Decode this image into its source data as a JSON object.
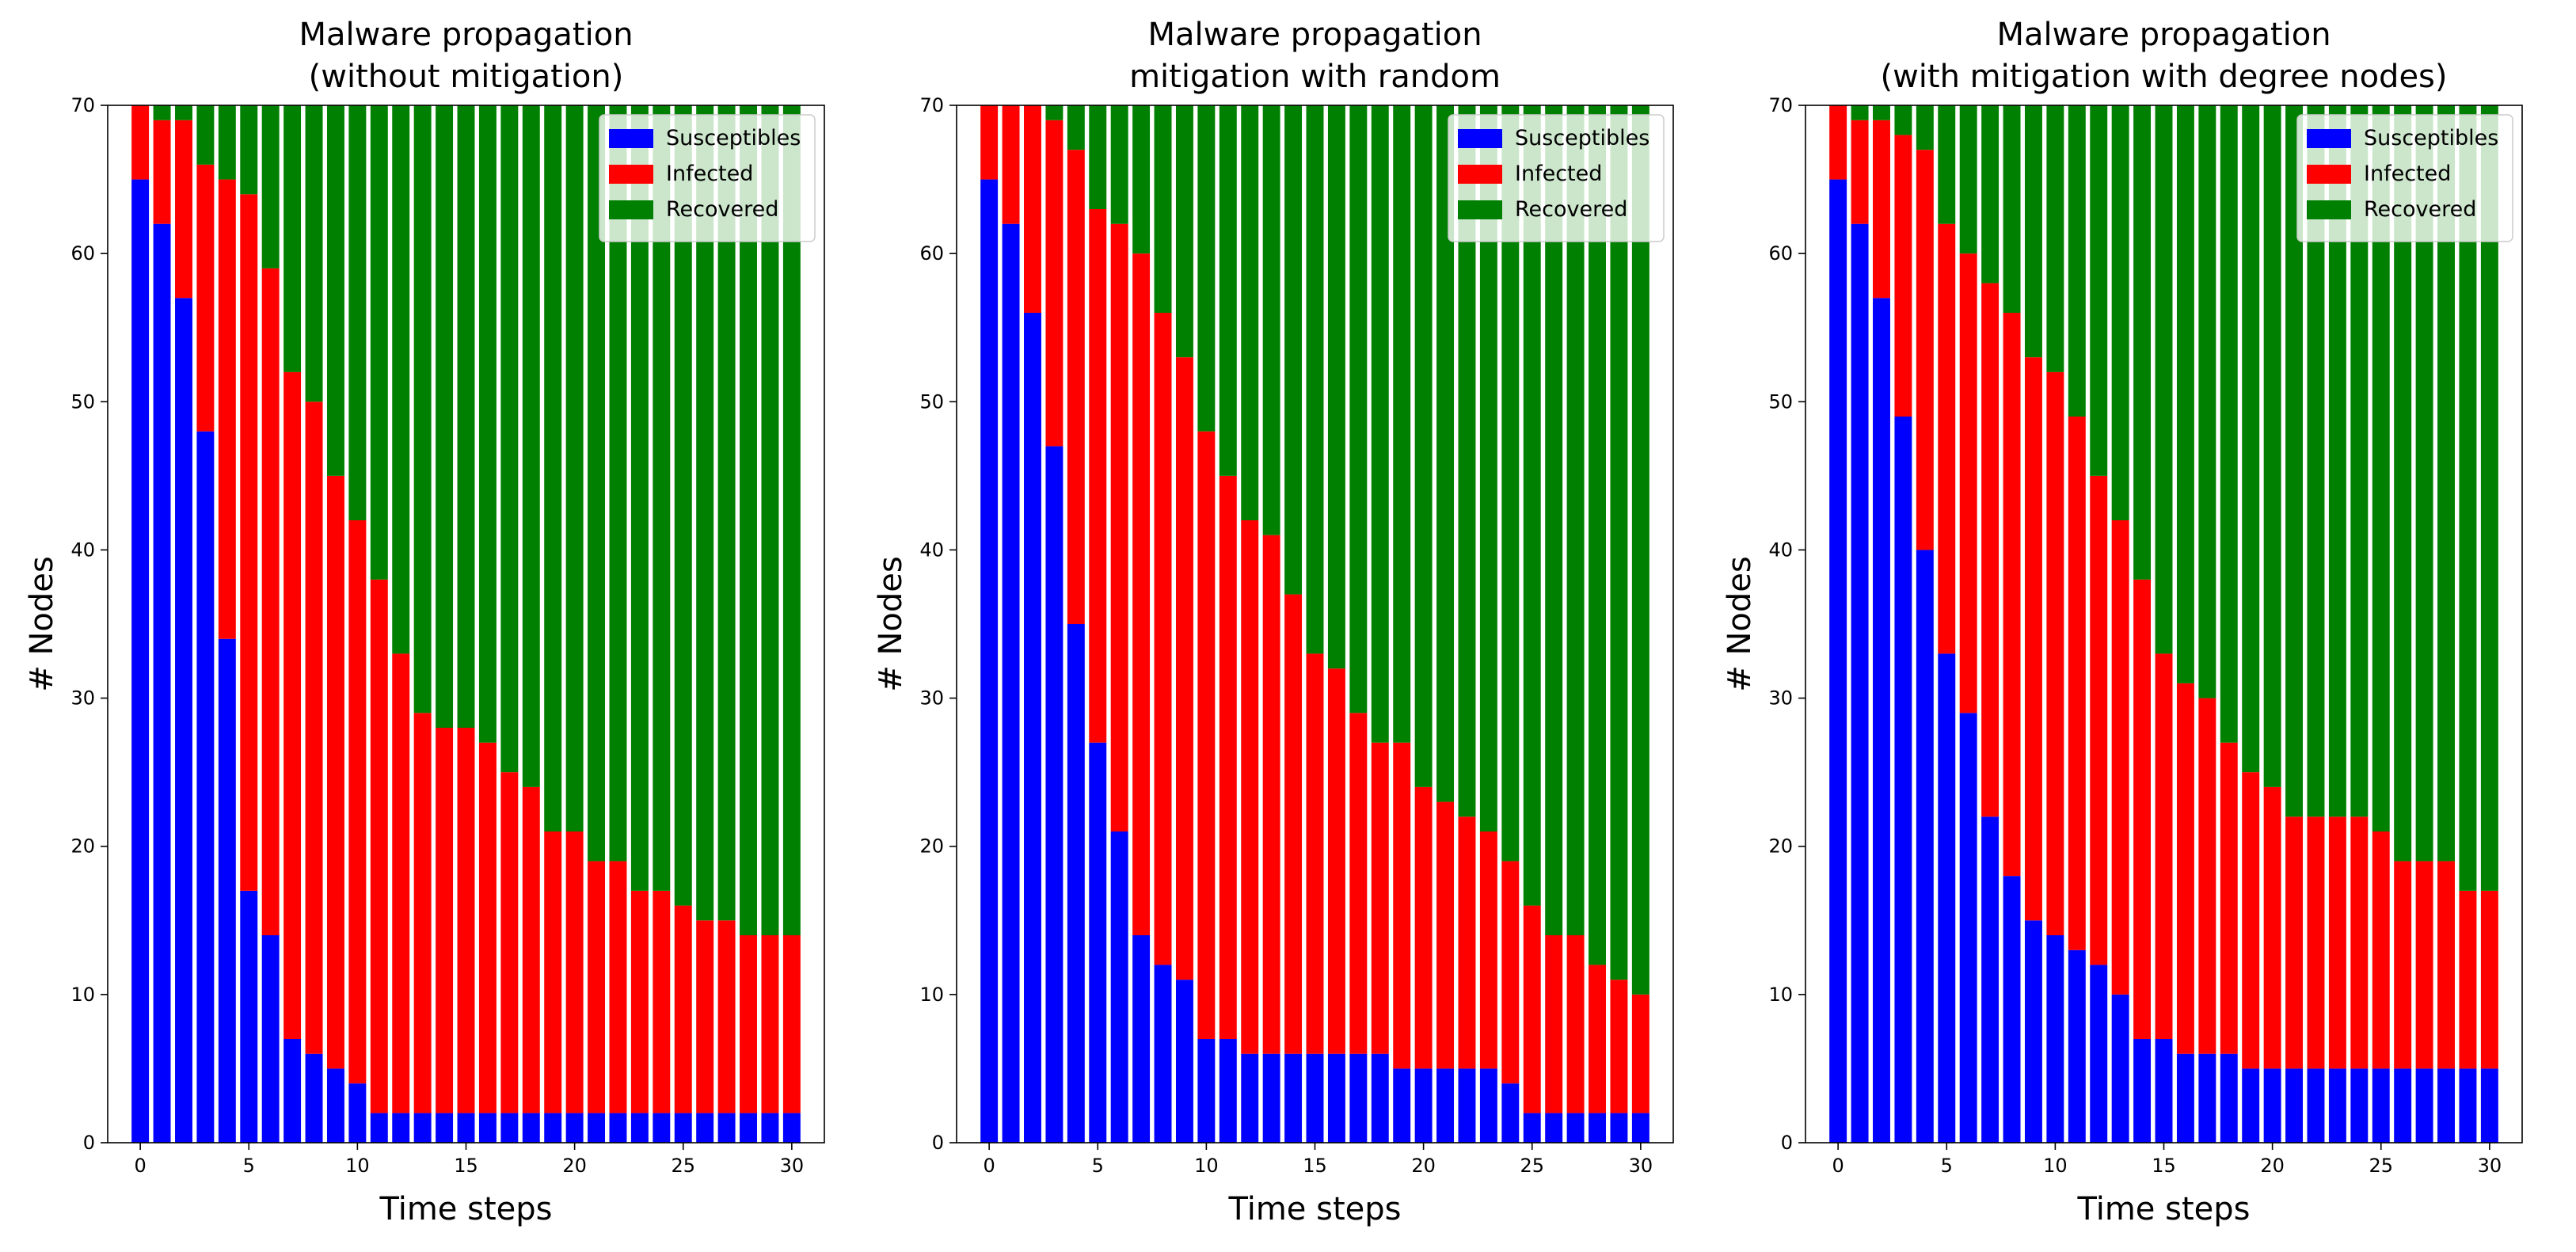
{
  "chart_data": [
    {
      "type": "bar",
      "stacked": true,
      "title_lines": [
        "Malware propagation",
        "(without mitigation)"
      ],
      "xlabel": "Time steps",
      "ylabel": "# Nodes",
      "ylim": [
        0,
        70
      ],
      "yticks": [
        0,
        10,
        20,
        30,
        40,
        50,
        60,
        70
      ],
      "xlim": [
        -1.5,
        31.5
      ],
      "xticks": [
        0,
        5,
        10,
        15,
        20,
        25,
        30
      ],
      "legend_position": "top-right",
      "categories": [
        0,
        1,
        2,
        3,
        4,
        5,
        6,
        7,
        8,
        9,
        10,
        11,
        12,
        13,
        14,
        15,
        16,
        17,
        18,
        19,
        20,
        21,
        22,
        23,
        24,
        25,
        26,
        27,
        28,
        29,
        30
      ],
      "series": [
        {
          "name": "Susceptibles",
          "color": "#0000ff",
          "values": [
            65,
            62,
            57,
            48,
            34,
            17,
            14,
            7,
            6,
            5,
            4,
            2,
            2,
            2,
            2,
            2,
            2,
            2,
            2,
            2,
            2,
            2,
            2,
            2,
            2,
            2,
            2,
            2,
            2,
            2,
            2
          ]
        },
        {
          "name": "Infected",
          "color": "#ff0000",
          "values": [
            5,
            7,
            12,
            18,
            31,
            47,
            45,
            45,
            44,
            40,
            38,
            36,
            31,
            27,
            26,
            26,
            25,
            23,
            22,
            19,
            19,
            17,
            17,
            15,
            15,
            14,
            13,
            13,
            12,
            12,
            12
          ]
        },
        {
          "name": "Recovered",
          "color": "#008000",
          "values": [
            0,
            1,
            1,
            4,
            5,
            6,
            11,
            18,
            20,
            25,
            28,
            32,
            37,
            41,
            42,
            42,
            43,
            45,
            46,
            49,
            49,
            51,
            51,
            53,
            53,
            54,
            55,
            55,
            56,
            56,
            56
          ]
        }
      ]
    },
    {
      "type": "bar",
      "stacked": true,
      "title_lines": [
        "Malware propagation",
        "mitigation with random"
      ],
      "xlabel": "Time steps",
      "ylabel": "# Nodes",
      "ylim": [
        0,
        70
      ],
      "yticks": [
        0,
        10,
        20,
        30,
        40,
        50,
        60,
        70
      ],
      "xlim": [
        -1.5,
        31.5
      ],
      "xticks": [
        0,
        5,
        10,
        15,
        20,
        25,
        30
      ],
      "legend_position": "top-right",
      "categories": [
        0,
        1,
        2,
        3,
        4,
        5,
        6,
        7,
        8,
        9,
        10,
        11,
        12,
        13,
        14,
        15,
        16,
        17,
        18,
        19,
        20,
        21,
        22,
        23,
        24,
        25,
        26,
        27,
        28,
        29,
        30
      ],
      "series": [
        {
          "name": "Susceptibles",
          "color": "#0000ff",
          "values": [
            65,
            62,
            56,
            47,
            35,
            27,
            21,
            14,
            12,
            11,
            7,
            7,
            6,
            6,
            6,
            6,
            6,
            6,
            6,
            5,
            5,
            5,
            5,
            5,
            4,
            2,
            2,
            2,
            2,
            2,
            2
          ]
        },
        {
          "name": "Infected",
          "color": "#ff0000",
          "values": [
            5,
            8,
            14,
            22,
            32,
            36,
            41,
            46,
            44,
            42,
            41,
            38,
            36,
            35,
            31,
            27,
            26,
            23,
            21,
            22,
            19,
            18,
            17,
            16,
            15,
            14,
            12,
            12,
            10,
            9,
            8
          ]
        },
        {
          "name": "Recovered",
          "color": "#008000",
          "values": [
            0,
            0,
            0,
            1,
            3,
            7,
            8,
            10,
            14,
            17,
            22,
            25,
            28,
            29,
            33,
            37,
            38,
            41,
            43,
            43,
            46,
            47,
            48,
            49,
            51,
            54,
            56,
            56,
            58,
            59,
            60
          ]
        }
      ]
    },
    {
      "type": "bar",
      "stacked": true,
      "title_lines": [
        "Malware propagation",
        "(with mitigation with degree nodes)"
      ],
      "xlabel": "Time steps",
      "ylabel": "# Nodes",
      "ylim": [
        0,
        70
      ],
      "yticks": [
        0,
        10,
        20,
        30,
        40,
        50,
        60,
        70
      ],
      "xlim": [
        -1.5,
        31.5
      ],
      "xticks": [
        0,
        5,
        10,
        15,
        20,
        25,
        30
      ],
      "legend_position": "top-right",
      "categories": [
        0,
        1,
        2,
        3,
        4,
        5,
        6,
        7,
        8,
        9,
        10,
        11,
        12,
        13,
        14,
        15,
        16,
        17,
        18,
        19,
        20,
        21,
        22,
        23,
        24,
        25,
        26,
        27,
        28,
        29,
        30
      ],
      "series": [
        {
          "name": "Susceptibles",
          "color": "#0000ff",
          "values": [
            65,
            62,
            57,
            49,
            40,
            33,
            29,
            22,
            18,
            15,
            14,
            13,
            12,
            10,
            7,
            7,
            6,
            6,
            6,
            5,
            5,
            5,
            5,
            5,
            5,
            5,
            5,
            5,
            5,
            5,
            5
          ]
        },
        {
          "name": "Infected",
          "color": "#ff0000",
          "values": [
            5,
            7,
            12,
            19,
            27,
            29,
            31,
            36,
            38,
            38,
            38,
            36,
            33,
            32,
            31,
            26,
            25,
            24,
            21,
            20,
            19,
            17,
            17,
            17,
            17,
            16,
            14,
            14,
            14,
            12,
            12
          ]
        },
        {
          "name": "Recovered",
          "color": "#008000",
          "values": [
            0,
            1,
            1,
            2,
            3,
            8,
            10,
            12,
            14,
            17,
            18,
            21,
            25,
            28,
            32,
            37,
            39,
            40,
            43,
            45,
            46,
            48,
            48,
            48,
            48,
            49,
            51,
            51,
            51,
            53,
            53
          ]
        }
      ]
    }
  ]
}
